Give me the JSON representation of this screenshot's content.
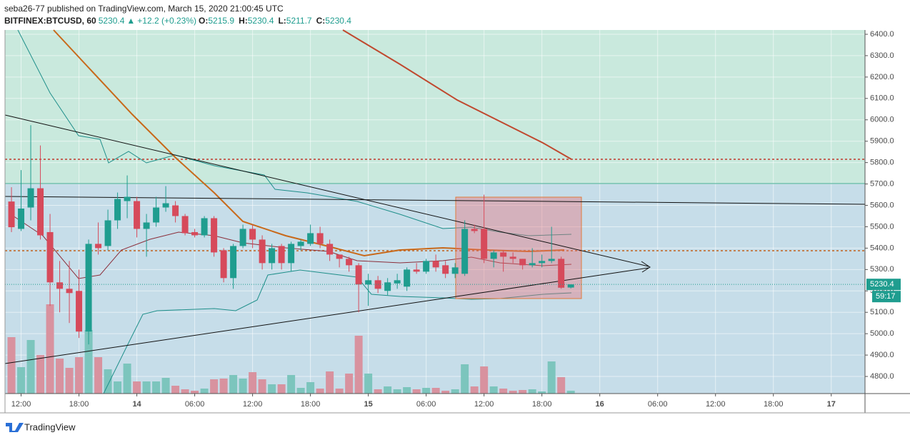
{
  "header": {
    "byline": "seba26-77 published on TradingView.com, March 15, 2020 21:00:45 UTC",
    "symbol": "BITFINEX:BTCUSD, 60",
    "last": "5230.4",
    "change": "+12.2 (+0.23%)",
    "ohlc": [
      {
        "label": "O:",
        "value": "5215.9"
      },
      {
        "label": "H:",
        "value": "5230.4"
      },
      {
        "label": "L:",
        "value": "5211.7"
      },
      {
        "label": "C:",
        "value": "5230.4"
      }
    ]
  },
  "chart_data": {
    "type": "candlestick",
    "up_color": "#1f9d8f",
    "down_color": "#d64a5b",
    "volume_up_color": "#7cc5bd",
    "volume_down_color": "#d8929f",
    "open": [
      5618,
      5490,
      5590,
      5680,
      5475,
      5240,
      5210,
      5200,
      5010,
      5420,
      5410,
      5530,
      5620,
      5620,
      5490,
      5520,
      5590,
      5600,
      5550,
      5475,
      5460,
      5540,
      5390,
      5260,
      5410,
      5490,
      5440,
      5330,
      5410,
      5330,
      5410,
      5420,
      5470,
      5420,
      5370,
      5350,
      5320,
      5230,
      5250,
      5200,
      5235,
      5220,
      5300,
      5290,
      5340,
      5320,
      5280,
      5280,
      5490,
      5490,
      5350,
      5380,
      5360,
      5350,
      5320,
      5330,
      5340,
      5350,
      5215.9
    ],
    "high": [
      5685,
      5765,
      5975,
      5880,
      5560,
      5340,
      5340,
      5300,
      5440,
      5520,
      5580,
      5660,
      5740,
      5640,
      5560,
      5640,
      5690,
      5620,
      5560,
      5490,
      5550,
      5550,
      5400,
      5420,
      5510,
      5510,
      5460,
      5420,
      5420,
      5430,
      5440,
      5510,
      5500,
      5440,
      5370,
      5360,
      5330,
      5280,
      5270,
      5260,
      5280,
      5310,
      5330,
      5350,
      5370,
      5340,
      5330,
      5530,
      5510,
      5650,
      5390,
      5390,
      5380,
      5350,
      5400,
      5370,
      5500,
      5360,
      5230.4
    ],
    "low": [
      5475,
      5480,
      5530,
      5440,
      5130,
      5100,
      5050,
      4980,
      4950,
      5370,
      5390,
      5490,
      5540,
      5450,
      5360,
      5500,
      5570,
      5520,
      5460,
      5450,
      5450,
      5360,
      5240,
      5210,
      5400,
      5400,
      5300,
      5300,
      5300,
      5290,
      5390,
      5410,
      5400,
      5340,
      5310,
      5290,
      5100,
      5130,
      5190,
      5180,
      5210,
      5200,
      5280,
      5280,
      5290,
      5260,
      5260,
      5270,
      5470,
      5330,
      5310,
      5290,
      5330,
      5300,
      5310,
      5310,
      5330,
      5210,
      5211.7
    ],
    "close": [
      5498,
      5585,
      5680,
      5460,
      5240,
      5210,
      5190,
      5010,
      5420,
      5400,
      5530,
      5630,
      5640,
      5490,
      5520,
      5590,
      5610,
      5550,
      5470,
      5460,
      5540,
      5380,
      5260,
      5410,
      5490,
      5440,
      5330,
      5400,
      5330,
      5420,
      5430,
      5470,
      5420,
      5370,
      5350,
      5320,
      5230,
      5250,
      5210,
      5240,
      5250,
      5300,
      5290,
      5340,
      5310,
      5280,
      5310,
      5490,
      5480,
      5350,
      5380,
      5360,
      5350,
      5320,
      5330,
      5340,
      5350,
      5215,
      5230.4
    ],
    "volume": [
      79,
      37,
      75,
      54,
      125,
      49,
      36,
      51,
      89,
      51,
      34,
      17,
      42,
      17,
      17,
      17,
      22,
      11,
      6,
      4,
      7,
      20,
      21,
      26,
      21,
      30,
      20,
      13,
      13,
      26,
      8,
      16,
      7,
      31,
      7,
      28,
      81,
      28,
      6,
      10,
      6,
      9,
      6,
      8,
      8,
      4,
      6,
      41,
      10,
      38,
      10,
      7,
      4,
      5,
      6,
      3,
      45,
      23,
      4
    ],
    "ylim": [
      4720,
      6420
    ],
    "yticks": [
      {
        "value": 4800,
        "label": "4800.0"
      },
      {
        "value": 4900,
        "label": "4900.0"
      },
      {
        "value": 5000,
        "label": "5000.0"
      },
      {
        "value": 5100,
        "label": "5100.0"
      },
      {
        "value": 5200,
        "label": "5200.0"
      },
      {
        "value": 5300,
        "label": "5300.0"
      },
      {
        "value": 5400,
        "label": "5400.0"
      },
      {
        "value": 5500,
        "label": "5500.0"
      },
      {
        "value": 5600,
        "label": "5600.0"
      },
      {
        "value": 5700,
        "label": "5700.0"
      },
      {
        "value": 5800,
        "label": "5800.0"
      },
      {
        "value": 5900,
        "label": "5900.0"
      },
      {
        "value": 6000,
        "label": "6000.0"
      },
      {
        "value": 6100,
        "label": "6100.0"
      },
      {
        "value": 6200,
        "label": "6200.0"
      },
      {
        "value": 6300,
        "label": "6300.0"
      },
      {
        "value": 6400,
        "label": "6400.0"
      }
    ],
    "xlim": [
      -0.67,
      88.5
    ],
    "xticks": [
      {
        "value": 1,
        "label": "12:00"
      },
      {
        "value": 7,
        "label": "18:00"
      },
      {
        "value": 13,
        "label": "14"
      },
      {
        "value": 19,
        "label": "06:00"
      },
      {
        "value": 25,
        "label": "12:00"
      },
      {
        "value": 31,
        "label": "18:00"
      },
      {
        "value": 37,
        "label": "15"
      },
      {
        "value": 43,
        "label": "06:00"
      },
      {
        "value": 49,
        "label": "12:00"
      },
      {
        "value": 55,
        "label": "18:00"
      },
      {
        "value": 61,
        "label": "16"
      },
      {
        "value": 67,
        "label": "06:00"
      },
      {
        "value": 73,
        "label": "12:00"
      },
      {
        "value": 79,
        "label": "18:00"
      },
      {
        "value": 85,
        "label": "17"
      }
    ],
    "grid": true,
    "last_price": 5230.4,
    "countdown": "59:17"
  },
  "footer": {
    "brand": "TradingView"
  }
}
